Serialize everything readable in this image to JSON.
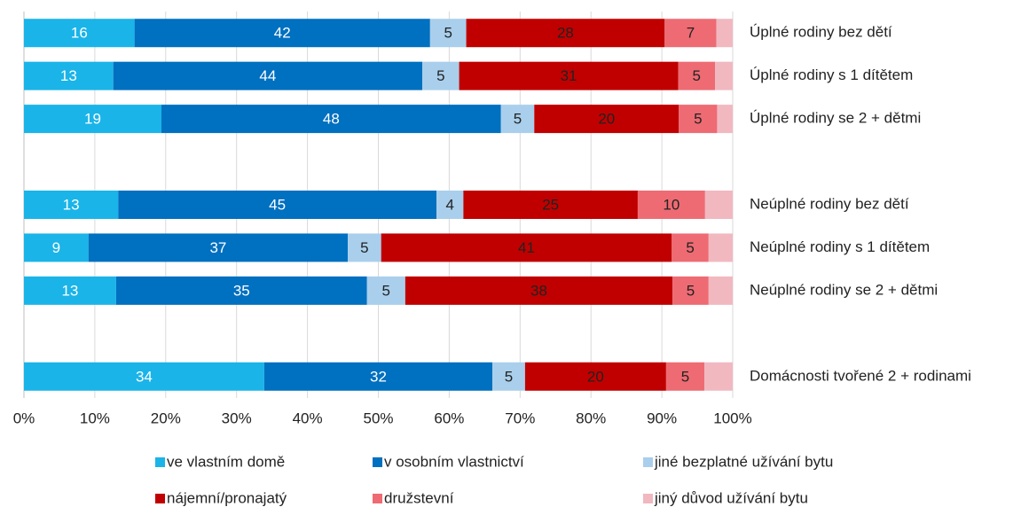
{
  "chart_data": {
    "type": "stacked-barh",
    "categories": [
      "Úplné rodiny bez dětí",
      "Úplné rodiny s 1 dítětem",
      "Úplné rodiny se 2 + dětmi",
      null,
      "Neúplné rodiny bez dětí",
      "Neúplné rodiny s 1 dítětem",
      "Neúplné rodiny se 2 + dětmi",
      null,
      "Domácnosti tvořené 2 + rodinami"
    ],
    "series": [
      {
        "name": "ve vlastním domě",
        "color": "#1ab4e8",
        "values": [
          15.6,
          12.6,
          19.4,
          null,
          13.3,
          9.1,
          13.0,
          null,
          33.9
        ],
        "value_labels": [
          "16",
          "13",
          "19",
          null,
          "13",
          "9",
          "13",
          null,
          "34"
        ]
      },
      {
        "name": "v osobním vlastnictví",
        "color": "#0070c0",
        "values": [
          41.7,
          43.6,
          47.9,
          null,
          44.9,
          36.6,
          35.4,
          null,
          32.2
        ],
        "value_labels": [
          "42",
          "44",
          "48",
          null,
          "45",
          "37",
          "35",
          null,
          "32"
        ]
      },
      {
        "name": "jiné bezplatné užívání bytu",
        "color": "#a9cfec",
        "values": [
          5.1,
          5.2,
          4.7,
          null,
          3.8,
          4.7,
          5.4,
          null,
          4.6
        ],
        "value_labels": [
          "5",
          "5",
          "5",
          null,
          "4",
          "5",
          "5",
          null,
          "5"
        ]
      },
      {
        "name": "nájemní/pronajatý",
        "color": "#c00000",
        "values": [
          28.0,
          30.9,
          20.4,
          null,
          24.6,
          41.0,
          37.7,
          null,
          19.9
        ],
        "value_labels": [
          "28",
          "31",
          "20",
          null,
          "25",
          "41",
          "38",
          null,
          "20"
        ]
      },
      {
        "name": "družstevní",
        "color": "#ee6b73",
        "values": [
          7.3,
          5.2,
          5.4,
          null,
          9.5,
          5.2,
          5.1,
          null,
          5.4
        ],
        "value_labels": [
          "7",
          "5",
          "5",
          null,
          "10",
          "5",
          "5",
          null,
          "5"
        ]
      },
      {
        "name": "jiný důvod užívání bytu",
        "color": "#f1b8c0",
        "values": [
          2.3,
          2.5,
          2.2,
          null,
          3.9,
          3.4,
          3.4,
          null,
          4.0
        ]
      }
    ],
    "xlim": [
      0,
      100
    ],
    "xticks": [
      {
        "value": 0,
        "label": "0%"
      },
      {
        "value": 10,
        "label": "10%"
      },
      {
        "value": 20,
        "label": "20%"
      },
      {
        "value": 30,
        "label": "30%"
      },
      {
        "value": 40,
        "label": "40%"
      },
      {
        "value": 50,
        "label": "50%"
      },
      {
        "value": 60,
        "label": "60%"
      },
      {
        "value": 70,
        "label": "70%"
      },
      {
        "value": 80,
        "label": "80%"
      },
      {
        "value": 90,
        "label": "90%"
      },
      {
        "value": 100,
        "label": "100%"
      }
    ],
    "grid": true,
    "legend": "bottom"
  }
}
